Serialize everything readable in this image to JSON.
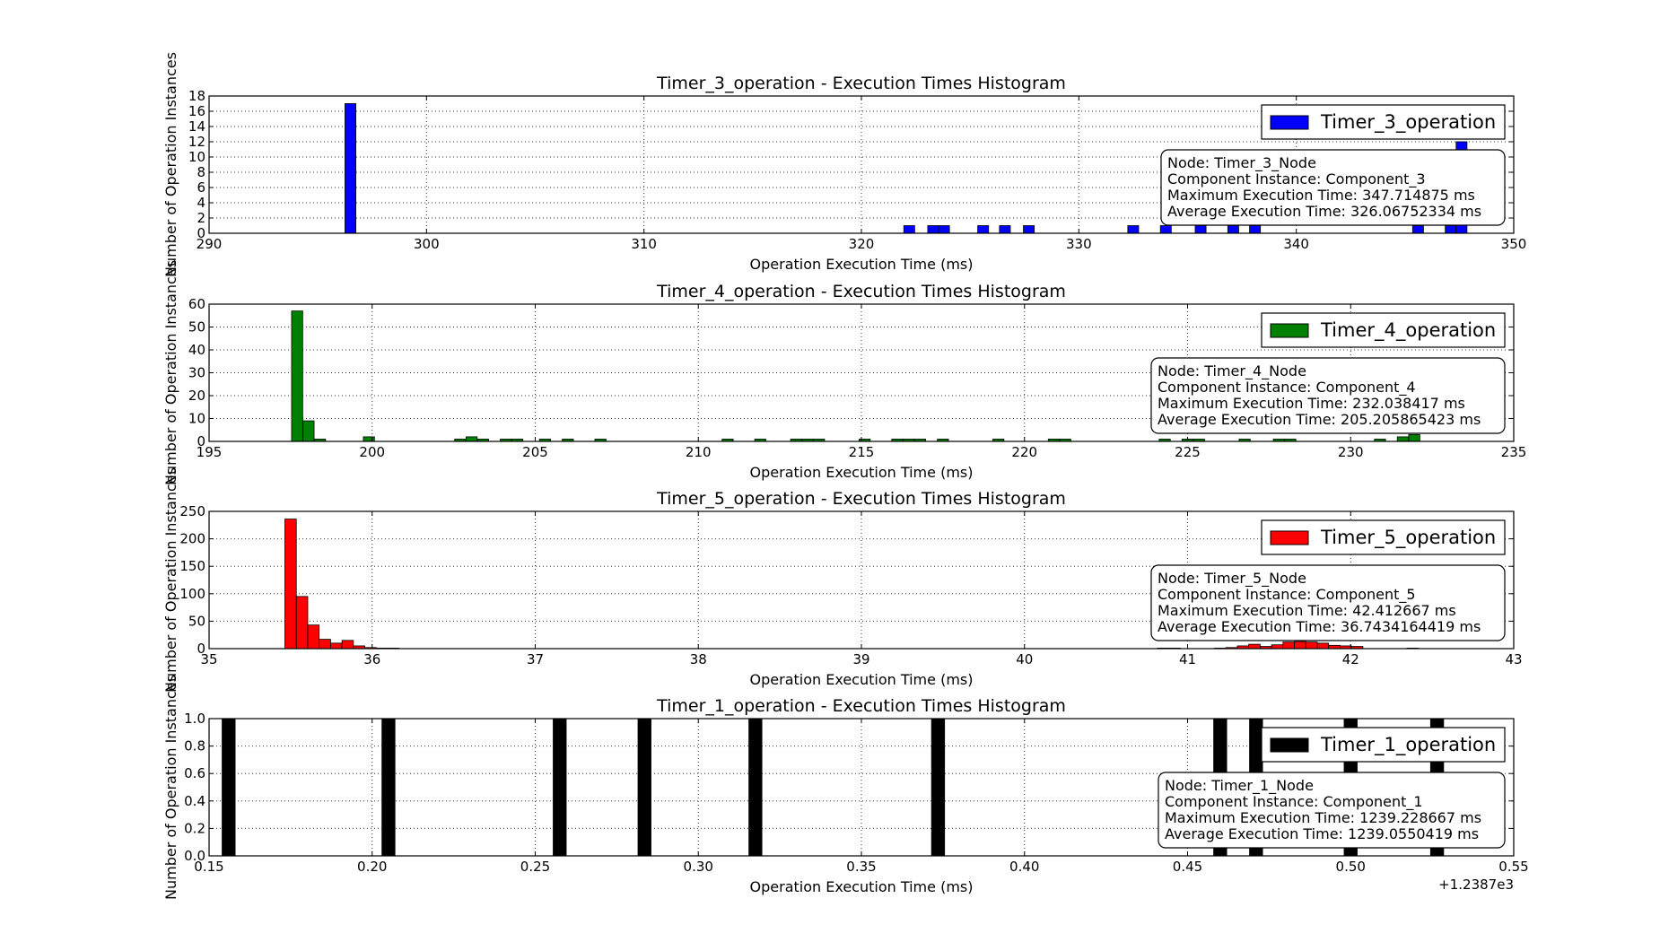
{
  "chart_data": [
    {
      "type": "bar",
      "title": "Timer_3_operation - Execution Times Histogram",
      "xlabel": "Operation Execution Time (ms)",
      "ylabel": "Number of Operation Instances",
      "xlim": [
        290,
        350
      ],
      "ylim": [
        0,
        18
      ],
      "xticks": [
        290,
        300,
        310,
        320,
        330,
        340,
        350
      ],
      "xtick_labels": [
        "290",
        "300",
        "310",
        "320",
        "330",
        "340",
        "350"
      ],
      "yticks": [
        0,
        2,
        4,
        6,
        8,
        10,
        12,
        14,
        16,
        18
      ],
      "ytick_labels": [
        "0",
        "2",
        "4",
        "6",
        "8",
        "10",
        "12",
        "14",
        "16",
        "18"
      ],
      "bar_width": 0.5,
      "color": "#0000ff",
      "grid": true,
      "legend": "top-right",
      "series": [
        {
          "name": "Timer_3_operation",
          "x": [
            296.5,
            322.2,
            323.3,
            323.8,
            325.6,
            326.6,
            327.7,
            332.5,
            334.0,
            335.6,
            337.1,
            338.1,
            345.6,
            347.1,
            347.6
          ],
          "values": [
            17,
            1,
            1,
            1,
            1,
            1,
            1,
            1,
            1,
            1,
            1,
            1,
            1,
            1,
            12
          ]
        }
      ],
      "annotation": [
        "Node: Timer_3_Node",
        "Component Instance: Component_3",
        "Maximum Execution Time: 347.714875 ms",
        "Average Execution Time: 326.06752334 ms"
      ]
    },
    {
      "type": "bar",
      "title": "Timer_4_operation - Execution Times Histogram",
      "xlabel": "Operation Execution Time (ms)",
      "ylabel": "Number of Operation Instances",
      "xlim": [
        195,
        235
      ],
      "ylim": [
        0,
        60
      ],
      "xticks": [
        195,
        200,
        205,
        210,
        215,
        220,
        225,
        230,
        235
      ],
      "xtick_labels": [
        "195",
        "200",
        "205",
        "210",
        "215",
        "220",
        "225",
        "230",
        "235"
      ],
      "yticks": [
        0,
        10,
        20,
        30,
        40,
        50,
        60
      ],
      "ytick_labels": [
        "0",
        "10",
        "20",
        "30",
        "40",
        "50",
        "60"
      ],
      "bar_width": 0.34,
      "color": "#008000",
      "grid": true,
      "legend": "top-right",
      "series": [
        {
          "name": "Timer_4_operation",
          "x": [
            197.7,
            198.05,
            198.4,
            199.9,
            202.7,
            203.05,
            203.4,
            204.1,
            204.45,
            205.3,
            206.0,
            207.0,
            210.9,
            211.9,
            213.0,
            213.35,
            213.7,
            215.1,
            216.1,
            216.45,
            216.8,
            217.5,
            219.2,
            220.9,
            221.25,
            224.3,
            225.0,
            225.35,
            226.75,
            227.8,
            228.15,
            230.9,
            231.6,
            231.95
          ],
          "values": [
            57,
            9,
            1,
            2,
            1,
            2,
            1,
            1,
            1,
            1,
            1,
            1,
            1,
            1,
            1,
            1,
            1,
            1,
            1,
            1,
            1,
            1,
            1,
            1,
            1,
            1,
            1,
            1,
            1,
            1,
            1,
            1,
            2,
            3
          ]
        }
      ],
      "annotation": [
        "Node: Timer_4_Node",
        "Component Instance: Component_4",
        "Maximum Execution Time: 232.038417 ms",
        "Average Execution Time: 205.205865423 ms"
      ]
    },
    {
      "type": "bar",
      "title": "Timer_5_operation - Execution Times Histogram",
      "xlabel": "Operation Execution Time (ms)",
      "ylabel": "Number of Operation Instances",
      "xlim": [
        35,
        43
      ],
      "ylim": [
        0,
        250
      ],
      "xticks": [
        35,
        36,
        37,
        38,
        39,
        40,
        41,
        42,
        43
      ],
      "xtick_labels": [
        "35",
        "36",
        "37",
        "38",
        "39",
        "40",
        "41",
        "42",
        "43"
      ],
      "yticks": [
        0,
        50,
        100,
        150,
        200,
        250
      ],
      "ytick_labels": [
        "0",
        "50",
        "100",
        "150",
        "200",
        "250"
      ],
      "bar_width": 0.07,
      "color": "#ff0000",
      "grid": true,
      "legend": "top-right",
      "series": [
        {
          "name": "Timer_5_operation",
          "x": [
            35.5,
            35.57,
            35.64,
            35.71,
            35.78,
            35.85,
            35.92,
            35.99,
            36.06,
            36.13,
            40.85,
            40.92,
            41.2,
            41.27,
            41.34,
            41.41,
            41.48,
            41.55,
            41.62,
            41.69,
            41.76,
            41.83,
            41.9,
            41.97,
            42.04,
            42.38
          ],
          "values": [
            236,
            95,
            43,
            17,
            10,
            15,
            5,
            2,
            1,
            1,
            1,
            1,
            1,
            2,
            5,
            8,
            4,
            7,
            12,
            13,
            12,
            10,
            6,
            5,
            4,
            1
          ]
        }
      ],
      "annotation": [
        "Node: Timer_5_Node",
        "Component Instance: Component_5",
        "Maximum Execution Time: 42.412667 ms",
        "Average Execution Time: 36.7434164419 ms"
      ]
    },
    {
      "type": "bar",
      "title": "Timer_1_operation - Execution Times Histogram",
      "xlabel": "Operation Execution Time (ms)",
      "ylabel": "Number of Operation Instances",
      "xlim": [
        0.15,
        0.55
      ],
      "ylim": [
        0,
        1.0
      ],
      "xticks": [
        0.15,
        0.2,
        0.25,
        0.3,
        0.35,
        0.4,
        0.45,
        0.5,
        0.55
      ],
      "xtick_labels": [
        "0.15",
        "0.20",
        "0.25",
        "0.30",
        "0.35",
        "0.40",
        "0.45",
        "0.50",
        "0.55"
      ],
      "yticks": [
        0,
        0.2,
        0.4,
        0.6,
        0.8,
        1.0
      ],
      "ytick_labels": [
        "0.0",
        "0.2",
        "0.4",
        "0.6",
        "0.8",
        "1.0"
      ],
      "x_offset_label": "+1.2387e3",
      "bar_width": 0.004,
      "color": "#000000",
      "grid": true,
      "legend": "top-right",
      "series": [
        {
          "name": "Timer_1_operation",
          "x": [
            0.156,
            0.205,
            0.2575,
            0.2835,
            0.3175,
            0.3735,
            0.46,
            0.471,
            0.5,
            0.5265
          ],
          "values": [
            1,
            1,
            1,
            1,
            1,
            1,
            1,
            1,
            1,
            1
          ]
        }
      ],
      "annotation": [
        "Node: Timer_1_Node",
        "Component Instance: Component_1",
        "Maximum Execution Time: 1239.228667 ms",
        "Average Execution Time: 1239.0550419 ms"
      ]
    }
  ]
}
